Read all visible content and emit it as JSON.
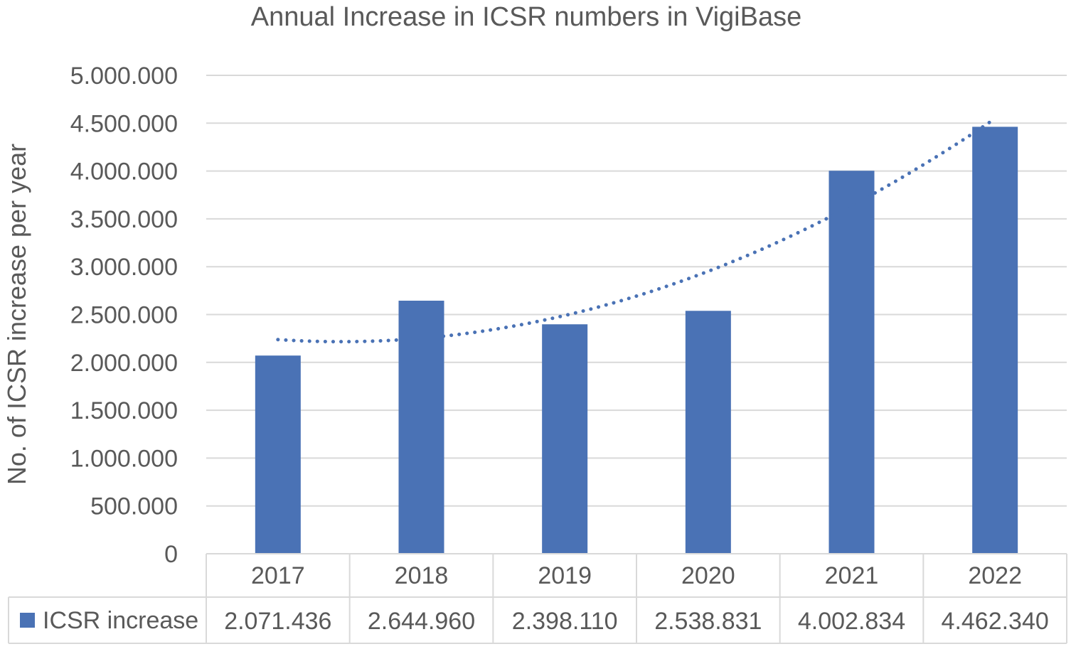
{
  "chart_data": {
    "type": "bar",
    "title": "Annual Increase in ICSR numbers in VigiBase",
    "xlabel": "",
    "ylabel": "No. of ICSR increase per year",
    "categories": [
      "2017",
      "2018",
      "2019",
      "2020",
      "2021",
      "2022"
    ],
    "series": [
      {
        "name": "ICSR increase",
        "values": [
          2071436,
          2644960,
          2398110,
          2538831,
          4002834,
          4462340
        ],
        "display_values": [
          "2.071.436",
          "2.644.960",
          "2.398.110",
          "2.538.831",
          "4.002.834",
          "4.462.340"
        ],
        "color": "#4a72b5"
      }
    ],
    "trendline": {
      "type": "polynomial",
      "style": "dotted",
      "color": "#4a72b5"
    },
    "ylim": [
      0,
      5000000
    ],
    "yticks": [
      0,
      500000,
      1000000,
      1500000,
      2000000,
      2500000,
      3000000,
      3500000,
      4000000,
      4500000,
      5000000
    ],
    "ytick_labels": [
      "0",
      "500.000",
      "1.000.000",
      "1.500.000",
      "2.000.000",
      "2.500.000",
      "3.000.000",
      "3.500.000",
      "4.000.000",
      "4.500.000",
      "5.000.000"
    ],
    "grid": true,
    "legend": "data-table",
    "data_table": true
  },
  "colors": {
    "bar": "#4a72b5",
    "grid": "#d9d9d9",
    "text": "#595959"
  }
}
